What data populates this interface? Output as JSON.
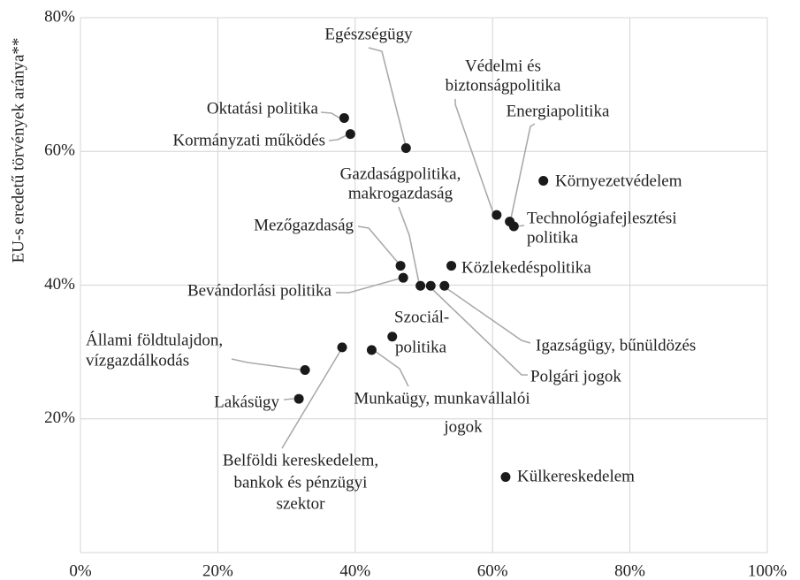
{
  "chart_data": {
    "type": "scatter",
    "y_label": "EU-s eredetű törvények aránya**",
    "xlim": [
      0,
      100
    ],
    "ylim": [
      0,
      80
    ],
    "xticks": [
      {
        "value": 0,
        "label": "0%"
      },
      {
        "value": 20,
        "label": "20%"
      },
      {
        "value": 40,
        "label": "40%"
      },
      {
        "value": 60,
        "label": "60%"
      },
      {
        "value": 80,
        "label": "80%"
      },
      {
        "value": 100,
        "label": "100%"
      }
    ],
    "yticks": [
      {
        "value": 20,
        "label": "20%"
      },
      {
        "value": 40,
        "label": "40%"
      },
      {
        "value": 60,
        "label": "60%"
      },
      {
        "value": 80,
        "label": "80%"
      }
    ],
    "grid": true,
    "color": "#1a1a1a",
    "points": [
      {
        "label": [
          "Oktatási politika"
        ],
        "x": 38.4,
        "y": 65.0
      },
      {
        "label": [
          "Kormányzati működés"
        ],
        "x": 39.3,
        "y": 62.6
      },
      {
        "label": [
          "Egészségügy"
        ],
        "x": 47.4,
        "y": 60.5
      },
      {
        "label": [
          "Környezetvédelem"
        ],
        "x": 67.4,
        "y": 55.6
      },
      {
        "label": [
          "Védelmi és",
          "biztonságpolitika"
        ],
        "x": 60.6,
        "y": 50.5
      },
      {
        "label": [
          "Energiapolitika"
        ],
        "x": 62.5,
        "y": 49.5
      },
      {
        "label": [
          "Technológiafejlesztési",
          "politika"
        ],
        "x": 63.1,
        "y": 48.8
      },
      {
        "label": [
          "Mezőgazdaság"
        ],
        "x": 46.6,
        "y": 42.9
      },
      {
        "label": [
          "Közlekedéspolitika"
        ],
        "x": 54.0,
        "y": 42.9
      },
      {
        "label": [
          "Bevándorlási politika"
        ],
        "x": 47.0,
        "y": 41.1
      },
      {
        "label": [
          "Gazdaságpolitika,",
          "makrogazdaság"
        ],
        "x": 49.5,
        "y": 39.9
      },
      {
        "label": [
          "Polgári jogok"
        ],
        "x": 51.0,
        "y": 39.9
      },
      {
        "label": [
          "Igazságügy, bűnüldözés"
        ],
        "x": 53.0,
        "y": 39.9
      },
      {
        "label": [
          "Szociál-",
          "politika"
        ],
        "x": 45.4,
        "y": 32.3
      },
      {
        "label": [
          "Munkaügy, munkavállalói",
          "jogok"
        ],
        "x": 42.4,
        "y": 30.3
      },
      {
        "label": [
          "Belföldi kereskedelem,",
          "bankok és pénzügyi",
          "szektor"
        ],
        "x": 38.1,
        "y": 30.7
      },
      {
        "label": [
          "Állami földtulajdon,",
          "vízgazdálkodás"
        ],
        "x": 32.7,
        "y": 27.3
      },
      {
        "label": [
          "Lakásügy"
        ],
        "x": 31.8,
        "y": 23.0
      },
      {
        "label": [
          "Külkereskedelem"
        ],
        "x": 61.9,
        "y": 11.3
      }
    ]
  }
}
